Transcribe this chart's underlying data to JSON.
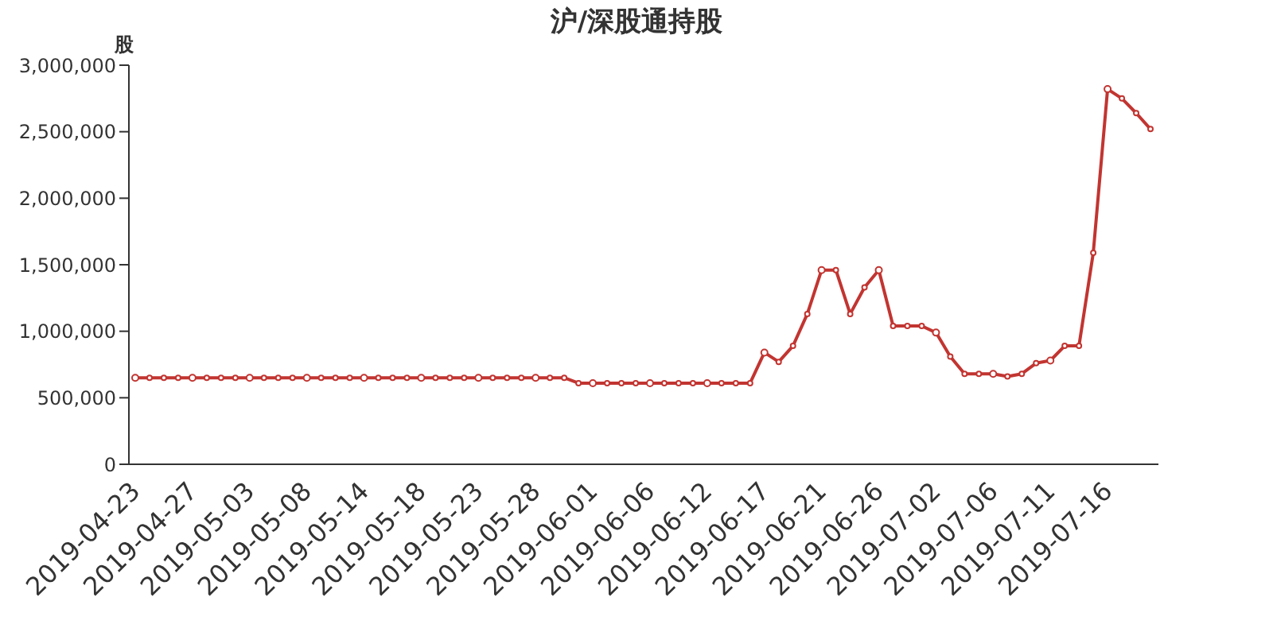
{
  "chart_data": {
    "type": "line",
    "title": "沪/深股通持股",
    "ylabel": "股",
    "categories": [
      "2019-04-23",
      null,
      null,
      null,
      "2019-04-27",
      null,
      null,
      null,
      "2019-05-03",
      null,
      null,
      null,
      "2019-05-08",
      null,
      null,
      null,
      "2019-05-14",
      null,
      null,
      null,
      "2019-05-18",
      null,
      null,
      null,
      "2019-05-23",
      null,
      null,
      null,
      "2019-05-28",
      null,
      null,
      null,
      "2019-06-01",
      null,
      null,
      null,
      "2019-06-06",
      null,
      null,
      null,
      "2019-06-12",
      null,
      null,
      null,
      "2019-06-17",
      null,
      null,
      null,
      "2019-06-21",
      null,
      null,
      null,
      "2019-06-26",
      null,
      null,
      null,
      "2019-07-02",
      null,
      null,
      null,
      "2019-07-06",
      null,
      null,
      null,
      "2019-07-11",
      null,
      null,
      null,
      "2019-07-16",
      null,
      null,
      null
    ],
    "series": [
      {
        "color": "#c23531",
        "values": [
          650000,
          650000,
          650000,
          650000,
          650000,
          650000,
          650000,
          650000,
          650000,
          650000,
          650000,
          650000,
          650000,
          650000,
          650000,
          650000,
          650000,
          650000,
          650000,
          650000,
          650000,
          650000,
          650000,
          650000,
          650000,
          650000,
          650000,
          650000,
          650000,
          650000,
          650000,
          610000,
          610000,
          610000,
          610000,
          610000,
          610000,
          610000,
          610000,
          610000,
          610000,
          610000,
          610000,
          610000,
          840000,
          770000,
          890000,
          1130000,
          1460000,
          1460000,
          1130000,
          1330000,
          1460000,
          1040000,
          1040000,
          1040000,
          990000,
          810000,
          680000,
          680000,
          680000,
          660000,
          680000,
          760000,
          780000,
          890000,
          890000,
          1590000,
          2820000,
          2750000,
          2640000,
          2520000
        ]
      }
    ],
    "ylim": [
      0,
      3000000
    ],
    "yticks": [
      0,
      {
        "value": 500000,
        "label": "500,000"
      },
      {
        "value": 1000000,
        "label": "1,000,000"
      },
      {
        "value": 1500000,
        "label": "1,500,000"
      },
      {
        "value": 2000000,
        "label": "2,000,000"
      },
      {
        "value": 2500000,
        "label": "2,500,000"
      },
      {
        "value": 3000000,
        "label": "3,000,000"
      }
    ],
    "grid": false,
    "legend": false,
    "marker": "circle",
    "line_style": "solid"
  }
}
